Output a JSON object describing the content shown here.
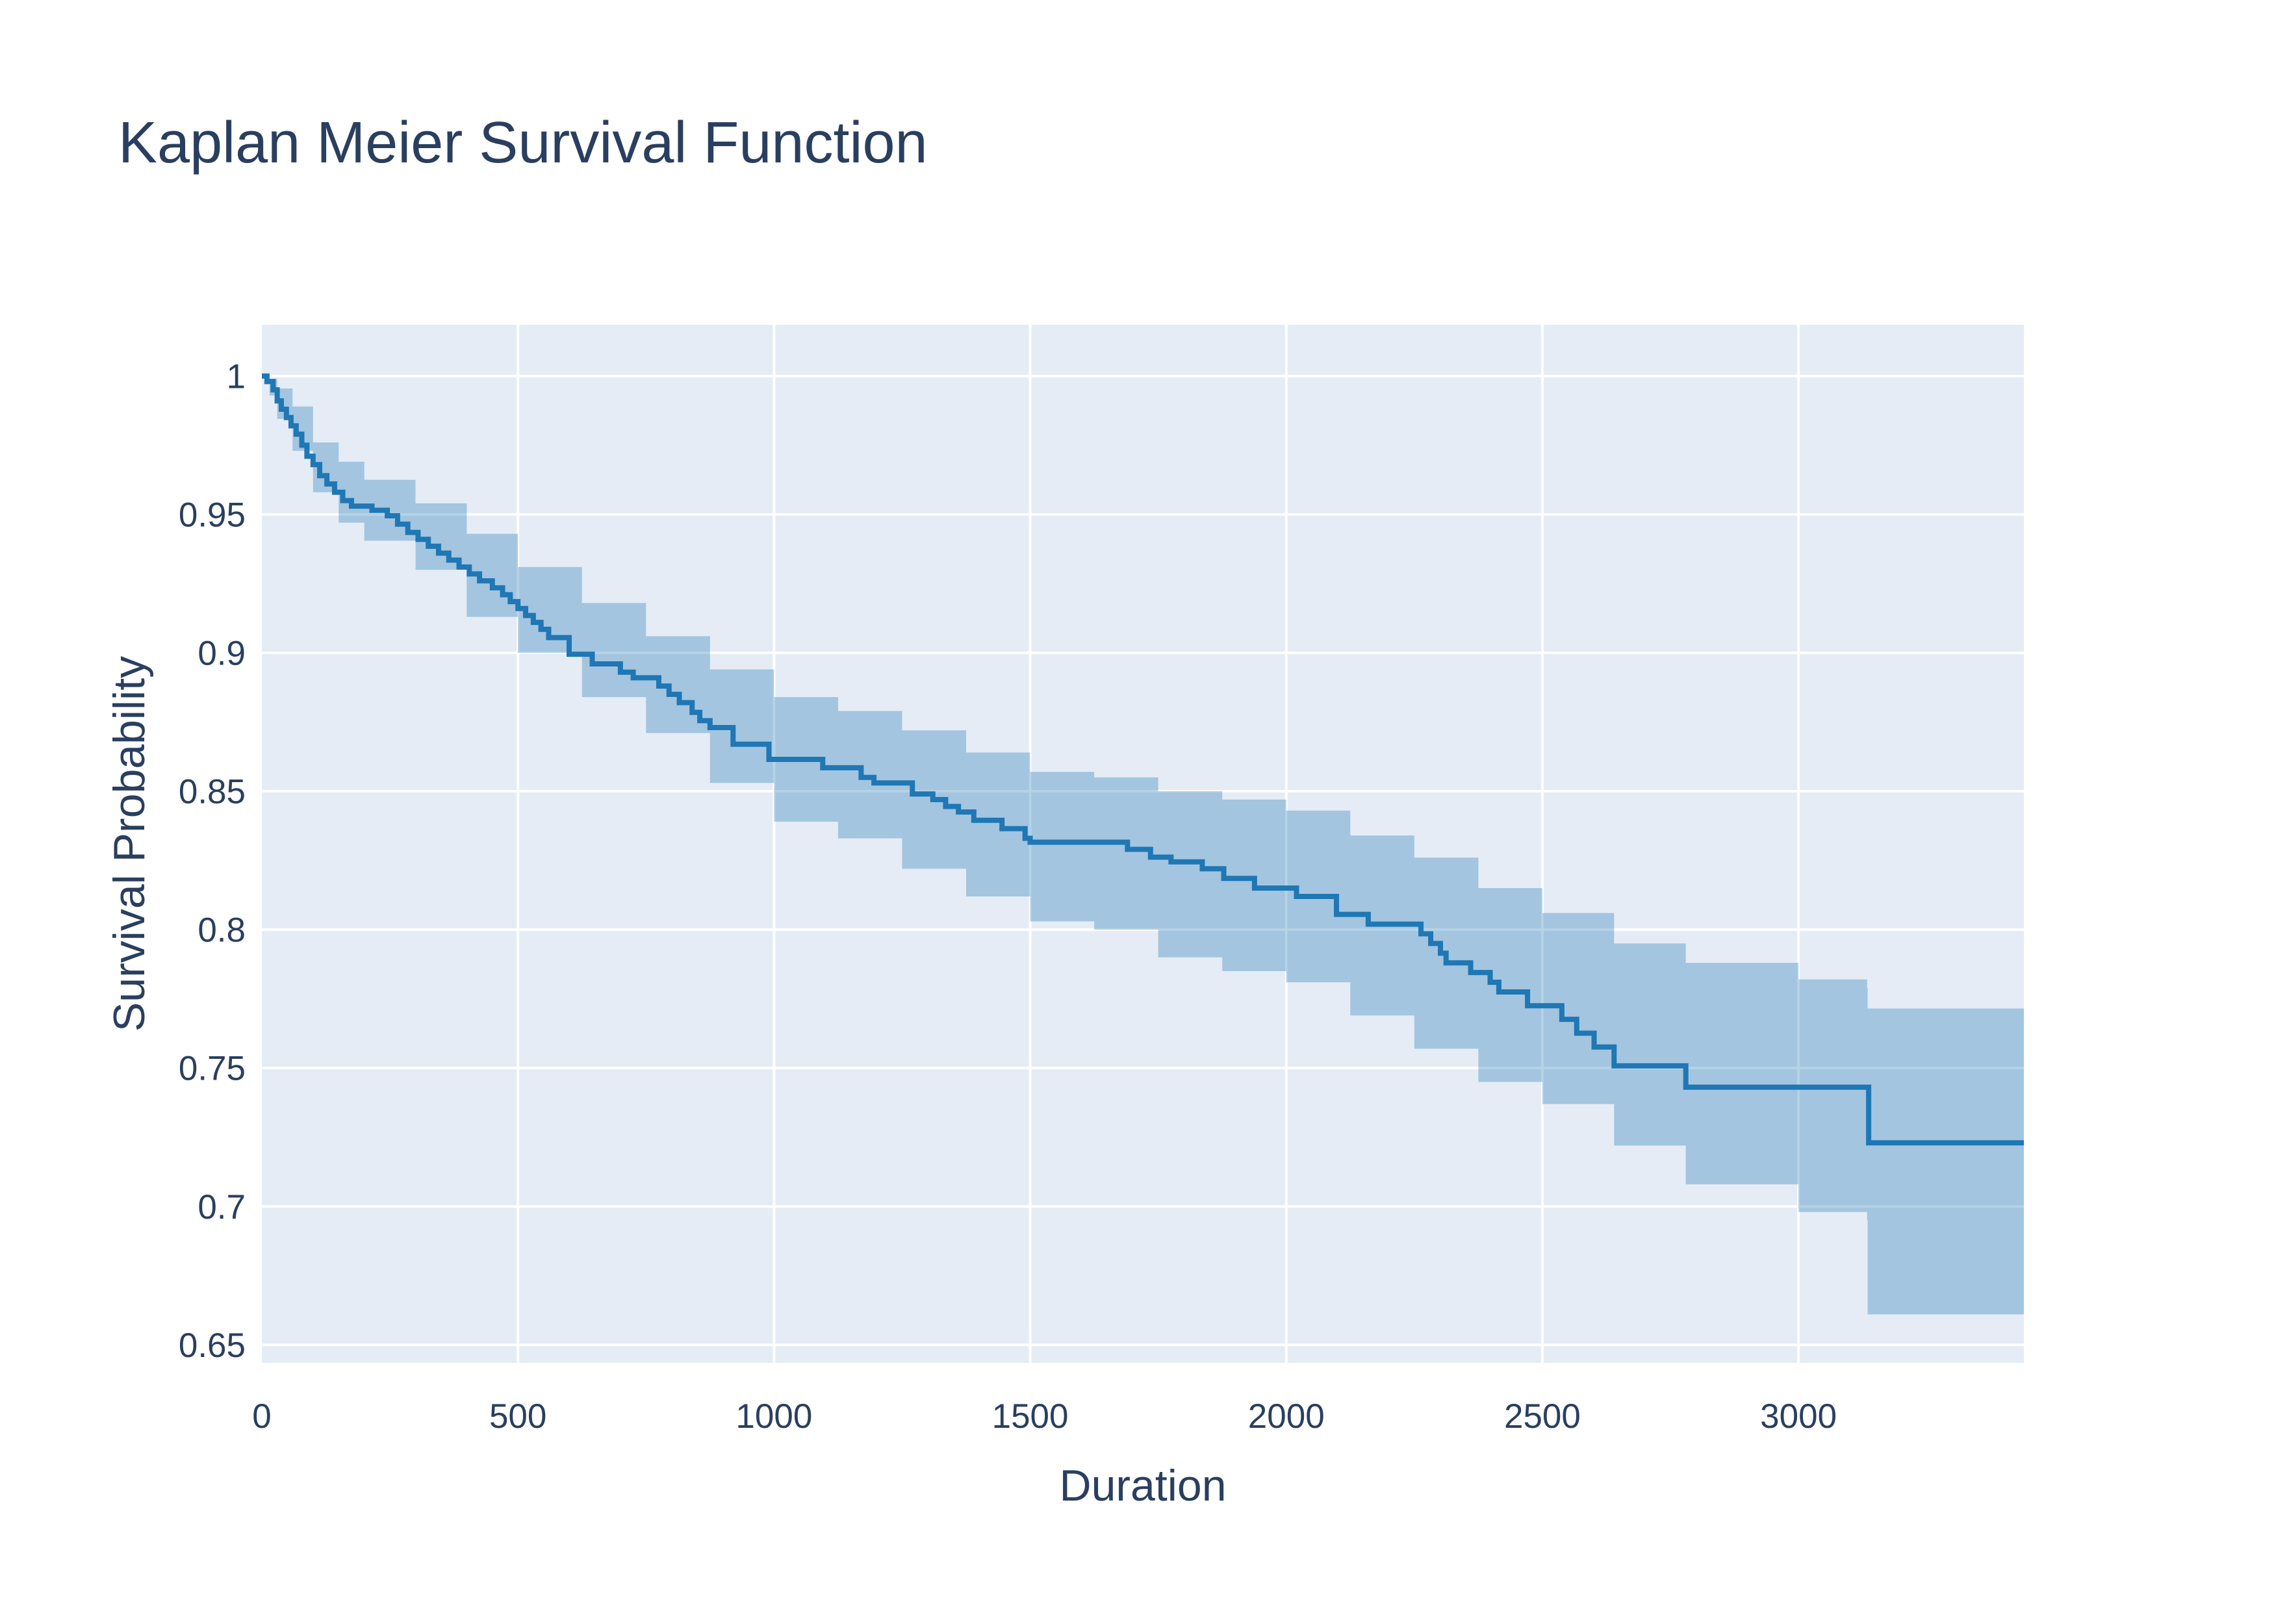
{
  "title": "Kaplan Meier Survival Function",
  "colors": {
    "paper_bg": "#ffffff",
    "plot_bg": "#e5ecf6",
    "gridline": "#ffffff",
    "line": "#1f77b4",
    "band_fill_rgba": "rgba(31,119,180,0.33)",
    "text": "#2a3f5f"
  },
  "chart_data": {
    "type": "line",
    "subtype": "kaplan-meier-step-function-with-confidence-band",
    "title": "Kaplan Meier Survival Function",
    "xlabel": "Duration",
    "ylabel": "Survival Probability",
    "xlim": [
      0,
      3440
    ],
    "ylim": [
      0.6435,
      1.0185
    ],
    "grid": true,
    "legend": false,
    "x_ticks": [
      0,
      500,
      1000,
      1500,
      2000,
      2500,
      3000
    ],
    "x_tick_labels": [
      "0",
      "500",
      "1000",
      "1500",
      "2000",
      "2500",
      "3000"
    ],
    "y_ticks": [
      0.65,
      0.7,
      0.75,
      0.8,
      0.85,
      0.9,
      0.95,
      1
    ],
    "y_tick_labels": [
      "0.65",
      "0.7",
      "0.75",
      "0.8",
      "0.85",
      "0.9",
      "0.95",
      "1"
    ],
    "series": [
      {
        "name": "KM_estimate",
        "mode": "step-after",
        "x": [
          0,
          10,
          22,
          30,
          38,
          48,
          57,
          67,
          78,
          88,
          100,
          113,
          127,
          142,
          158,
          175,
          215,
          245,
          265,
          285,
          305,
          325,
          345,
          365,
          385,
          405,
          425,
          450,
          470,
          485,
          500,
          515,
          530,
          545,
          560,
          600,
          645,
          700,
          725,
          775,
          795,
          815,
          840,
          855,
          875,
          920,
          990,
          1095,
          1170,
          1195,
          1270,
          1310,
          1335,
          1360,
          1390,
          1445,
          1490,
          1500,
          1690,
          1735,
          1775,
          1836,
          1878,
          1938,
          2020,
          2098,
          2160,
          2263,
          2282,
          2301,
          2312,
          2360,
          2398,
          2415,
          2471,
          2538,
          2567,
          2601,
          2640,
          2780,
          3137,
          3440
        ],
        "y": [
          1.0,
          0.998,
          0.995,
          0.991,
          0.988,
          0.985,
          0.982,
          0.979,
          0.975,
          0.971,
          0.968,
          0.964,
          0.961,
          0.958,
          0.955,
          0.953,
          0.9515,
          0.9495,
          0.9465,
          0.9435,
          0.941,
          0.9385,
          0.936,
          0.9335,
          0.931,
          0.9285,
          0.926,
          0.9235,
          0.921,
          0.9185,
          0.916,
          0.9135,
          0.911,
          0.9085,
          0.9055,
          0.8995,
          0.896,
          0.893,
          0.891,
          0.888,
          0.885,
          0.882,
          0.8785,
          0.8755,
          0.873,
          0.867,
          0.8615,
          0.8585,
          0.855,
          0.853,
          0.849,
          0.847,
          0.8445,
          0.8425,
          0.8395,
          0.8365,
          0.833,
          0.8316,
          0.829,
          0.8262,
          0.8245,
          0.822,
          0.8185,
          0.815,
          0.812,
          0.8055,
          0.802,
          0.7985,
          0.795,
          0.7915,
          0.788,
          0.7845,
          0.781,
          0.7775,
          0.7725,
          0.7676,
          0.7626,
          0.7576,
          0.7508,
          0.7431,
          0.723,
          0.723
        ]
      }
    ],
    "band": {
      "name": "confidence_interval",
      "mode": "step-after",
      "x": [
        0,
        15,
        30,
        60,
        100,
        150,
        200,
        300,
        400,
        500,
        625,
        750,
        875,
        1000,
        1125,
        1250,
        1375,
        1500,
        1625,
        1750,
        1875,
        2000,
        2125,
        2250,
        2375,
        2500,
        2640,
        2780,
        3000,
        3134,
        3135,
        3440
      ],
      "lower": [
        1.0,
        0.993,
        0.9845,
        0.973,
        0.958,
        0.947,
        0.9405,
        0.93,
        0.913,
        0.9,
        0.884,
        0.871,
        0.853,
        0.839,
        0.833,
        0.822,
        0.812,
        0.803,
        0.8,
        0.79,
        0.785,
        0.781,
        0.769,
        0.757,
        0.745,
        0.737,
        0.722,
        0.708,
        0.698,
        0.695,
        0.661,
        0.661
      ],
      "upper": [
        1.0,
        0.999,
        0.9955,
        0.989,
        0.976,
        0.969,
        0.9625,
        0.954,
        0.943,
        0.931,
        0.918,
        0.906,
        0.894,
        0.884,
        0.879,
        0.872,
        0.864,
        0.857,
        0.855,
        0.85,
        0.847,
        0.843,
        0.834,
        0.826,
        0.815,
        0.806,
        0.795,
        0.788,
        0.782,
        0.779,
        0.7715,
        0.7715
      ]
    }
  }
}
